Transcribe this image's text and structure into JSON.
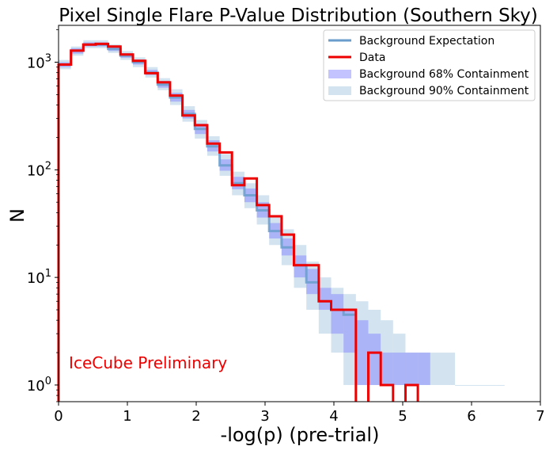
{
  "chart_data": {
    "type": "line",
    "title": "Pixel Single Flare P-Value Distribution (Southern Sky)",
    "xlabel": "-log(p) (pre-trial)",
    "ylabel": "N",
    "xlim": [
      0,
      7
    ],
    "ylim": [
      0.7,
      2200
    ],
    "yscale": "log",
    "xticks": [
      "0",
      "1",
      "2",
      "3",
      "4",
      "5",
      "6",
      "7"
    ],
    "yticks": [
      {
        "value": 1,
        "label": "10",
        "exp": "0"
      },
      {
        "value": 10,
        "label": "10",
        "exp": "1"
      },
      {
        "value": 100,
        "label": "10",
        "exp": "2"
      },
      {
        "value": 1000,
        "label": "10",
        "exp": "3"
      }
    ],
    "bin_width": 0.18,
    "bin_starts": [
      0,
      0.18,
      0.36,
      0.54,
      0.72,
      0.9,
      1.08,
      1.26,
      1.44,
      1.62,
      1.8,
      1.98,
      2.16,
      2.34,
      2.52,
      2.7,
      2.88,
      3.06,
      3.24,
      3.42,
      3.6,
      3.78,
      3.96,
      4.14,
      4.32,
      4.5,
      4.68,
      4.86,
      5.04,
      5.22,
      5.4,
      5.58,
      5.76,
      5.94,
      6.12,
      6.3
    ],
    "series": [
      {
        "name": "Background Expectation",
        "style": "step-line",
        "color": "#6a9dcc",
        "values": [
          950,
          1280,
          1460,
          1460,
          1330,
          1150,
          1000,
          800,
          620,
          470,
          330,
          240,
          165,
          110,
          75,
          58,
          42,
          27,
          19,
          13,
          9,
          6,
          5,
          4.5,
          null,
          null,
          null,
          null,
          null,
          null,
          null,
          null,
          null,
          null,
          null,
          null
        ]
      },
      {
        "name": "Data",
        "style": "step-line",
        "color": "#ee0000",
        "values": [
          950,
          1280,
          1460,
          1480,
          1400,
          1180,
          1030,
          790,
          650,
          490,
          320,
          260,
          175,
          145,
          72,
          83,
          47,
          37,
          25,
          13,
          13,
          6,
          5,
          5,
          null,
          2,
          1,
          null,
          1,
          null,
          null,
          null,
          null,
          null,
          null,
          null
        ]
      },
      {
        "name": "Background 68% Containment",
        "style": "band",
        "color": "#7b7bff",
        "opacity": 0.45,
        "lower": [
          900,
          1200,
          1400,
          1400,
          1270,
          1100,
          950,
          760,
          580,
          430,
          300,
          215,
          148,
          98,
          66,
          50,
          36,
          23,
          16,
          10,
          7,
          5,
          3,
          2,
          1,
          1,
          1,
          1,
          1,
          1,
          null,
          null,
          null,
          null,
          null,
          null
        ],
        "upper": [
          1000,
          1350,
          1530,
          1530,
          1400,
          1210,
          1060,
          850,
          670,
          520,
          360,
          268,
          188,
          125,
          86,
          67,
          50,
          32,
          23,
          16,
          12,
          8,
          7,
          5,
          4,
          3,
          2,
          2,
          2,
          2,
          1,
          null,
          null,
          null,
          null,
          null
        ]
      },
      {
        "name": "Background 90% Containment",
        "style": "band",
        "color": "#a8c8e0",
        "opacity": 0.5,
        "lower": [
          860,
          1150,
          1350,
          1350,
          1220,
          1050,
          900,
          720,
          550,
          400,
          280,
          195,
          135,
          88,
          58,
          44,
          31,
          20,
          13,
          8,
          5,
          3,
          2,
          1,
          1,
          1,
          1,
          1,
          1,
          1,
          1,
          1,
          1,
          1,
          1,
          1
        ],
        "upper": [
          1050,
          1400,
          1600,
          1600,
          1460,
          1270,
          1110,
          900,
          710,
          560,
          390,
          290,
          205,
          140,
          96,
          75,
          58,
          38,
          28,
          20,
          14,
          10,
          8,
          7,
          6,
          5,
          4,
          3,
          2,
          2,
          2,
          2,
          1,
          1,
          1,
          1
        ]
      }
    ],
    "legend": {
      "placement": "top-right"
    },
    "annotations": [
      {
        "text": "IceCube Preliminary",
        "color": "#ee0000",
        "x": 0.15,
        "y": 1.6
      }
    ],
    "grid": false
  }
}
